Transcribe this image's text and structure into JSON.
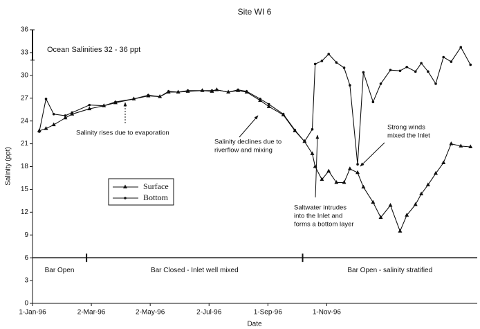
{
  "chart_data": {
    "type": "line",
    "title": "Site WI 6",
    "x_label": "Date",
    "y_label": "Salinity (ppt)",
    "x": [
      "1996-01-08",
      "1996-01-15",
      "1996-01-23",
      "1996-02-04",
      "1996-02-11",
      "1996-02-29",
      "1996-03-15",
      "1996-03-27",
      "1996-04-15",
      "1996-04-30",
      "1996-05-12",
      "1996-05-21",
      "1996-05-31",
      "1996-06-10",
      "1996-06-25",
      "1996-07-05",
      "1996-07-10",
      "1996-07-22",
      "1996-08-01",
      "1996-08-10",
      "1996-08-24",
      "1996-09-02",
      "1996-09-17",
      "1996-09-29",
      "1996-10-09",
      "1996-10-17",
      "1996-10-20",
      "1996-10-27",
      "1996-11-03",
      "1996-11-11",
      "1996-11-19",
      "1996-11-25",
      "1996-12-03",
      "1996-12-09",
      "1996-12-19",
      "1996-12-27",
      "1997-01-06",
      "1997-01-16",
      "1997-01-23",
      "1997-02-01",
      "1997-02-07",
      "1997-02-14",
      "1997-02-22",
      "1997-03-02",
      "1997-03-10",
      "1997-03-20",
      "1997-03-30"
    ],
    "series": [
      {
        "name": "Surface",
        "color": "#111111",
        "marker": "triangle",
        "values": [
          22.7,
          23.0,
          23.5,
          24.4,
          24.9,
          25.6,
          26.0,
          26.4,
          26.9,
          27.3,
          27.2,
          27.8,
          27.8,
          27.9,
          28.0,
          27.9,
          28.1,
          27.8,
          28.0,
          27.8,
          26.7,
          25.9,
          24.8,
          22.7,
          21.3,
          19.7,
          18.0,
          16.3,
          17.4,
          15.9,
          15.9,
          17.7,
          17.2,
          15.3,
          13.3,
          11.3,
          12.9,
          9.5,
          11.6,
          13.0,
          14.4,
          15.6,
          17.1,
          18.5,
          21.0,
          20.7,
          20.6
        ]
      },
      {
        "name": "Bottom",
        "color": "#111111",
        "marker": "dot",
        "values": [
          22.6,
          26.9,
          24.9,
          24.7,
          25.1,
          26.1,
          26.0,
          26.5,
          26.9,
          27.4,
          27.2,
          27.9,
          27.8,
          28.0,
          28.0,
          28.0,
          28.1,
          27.8,
          28.1,
          27.9,
          26.9,
          26.2,
          24.9,
          22.8,
          21.3,
          22.9,
          31.5,
          31.9,
          32.8,
          31.7,
          31.0,
          28.7,
          18.3,
          30.4,
          26.5,
          28.9,
          30.7,
          30.6,
          31.1,
          30.5,
          31.6,
          30.5,
          28.9,
          32.4,
          31.8,
          33.7,
          31.4
        ]
      }
    ],
    "xlim": [
      "1996-01-01",
      "1997-04-06"
    ],
    "xticks": [
      {
        "value": "1996-01-01",
        "label": "1-Jan-96"
      },
      {
        "value": "1996-03-02",
        "label": "2-Mar-96"
      },
      {
        "value": "1996-05-02",
        "label": "2-May-96"
      },
      {
        "value": "1996-07-02",
        "label": "2-Jul-96"
      },
      {
        "value": "1996-09-01",
        "label": "1-Sep-96"
      },
      {
        "value": "1996-11-01",
        "label": "1-Nov-96"
      }
    ],
    "ylim": [
      0,
      36
    ],
    "yticks": [
      0,
      3,
      6,
      9,
      12,
      15,
      18,
      21,
      24,
      27,
      30,
      33,
      36
    ],
    "ocean_range": [
      32,
      36
    ],
    "ocean_label": "Ocean Salinities 32 - 36 ppt",
    "period_line": 6,
    "period_breaks": [
      "1996-02-26",
      "1996-10-07"
    ],
    "periods": [
      "Bar Open",
      "Bar Closed - Inlet well mixed",
      "Bar Open - salinity stratified"
    ],
    "annotations": [
      [
        "Salinity rises due to evaporation"
      ],
      [
        "Salinity declines due to",
        "riverflow and mixing"
      ],
      [
        "Saltwater intrudes",
        "into the Inlet and",
        "forms a bottom layer"
      ],
      [
        "Strong winds",
        "mixed the Inlet"
      ]
    ],
    "legend": "center-left"
  }
}
